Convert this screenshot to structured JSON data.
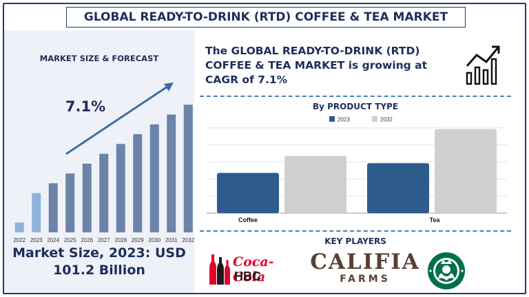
{
  "header": {
    "title": "GLOBAL READY-TO-DRINK (RTD) COFFEE & TEA MARKET"
  },
  "left_panel": {
    "heading": "MARKET SIZE & FORECAST",
    "market_size_line1": "Market Size, 2023: USD",
    "market_size_line2": "101.2 Billion"
  },
  "headline": {
    "text": "The GLOBAL READY-TO-DRINK (RTD) COFFEE & TEA MARKET is growing at CAGR of 7.1%"
  },
  "product_section": {
    "heading": "By PRODUCT TYPE"
  },
  "key_players": {
    "heading": "KEY PLAYERS",
    "coke_name": "Coca-Cola",
    "coke_sub": "HBC",
    "califia_name": "CALIFIA",
    "califia_sub": "FARMS"
  },
  "icons": {
    "growth": "growth-chart-icon",
    "bottles": "bottles-icon",
    "siren": "starbucks-siren-logo"
  },
  "colors": {
    "navy": "#1f2d5c",
    "bar_main": "#6b84a8",
    "bar_highlight": "#8fb2dc",
    "arrow": "#3b6ea5",
    "series_2023": "#2e5a8c",
    "series_2032": "#cfcfcf",
    "coke_red": "#e4002b",
    "califia_brown": "#5a3f33",
    "starbucks_green": "#00704a"
  },
  "chart_data": [
    {
      "type": "bar",
      "title": "MARKET SIZE & FORECAST",
      "categories": [
        "2022",
        "2023",
        "2024",
        "2025",
        "2026",
        "2027",
        "2028",
        "2029",
        "2030",
        "2031",
        "2032"
      ],
      "values": [
        10,
        40,
        50,
        60,
        70,
        80,
        90,
        100,
        110,
        120,
        130
      ],
      "highlight_categories": [
        "2022",
        "2023"
      ],
      "annotation": "7.1%",
      "ylim": [
        0,
        140
      ],
      "grid": false
    },
    {
      "type": "bar",
      "title": "By PRODUCT TYPE",
      "categories": [
        "Coffee",
        "Tea"
      ],
      "series": [
        {
          "name": "2023",
          "values": [
            33,
            41
          ]
        },
        {
          "name": "2032",
          "values": [
            47,
            69
          ]
        }
      ],
      "ylim": [
        0,
        70
      ],
      "grid": true,
      "legend": "top-center"
    }
  ]
}
